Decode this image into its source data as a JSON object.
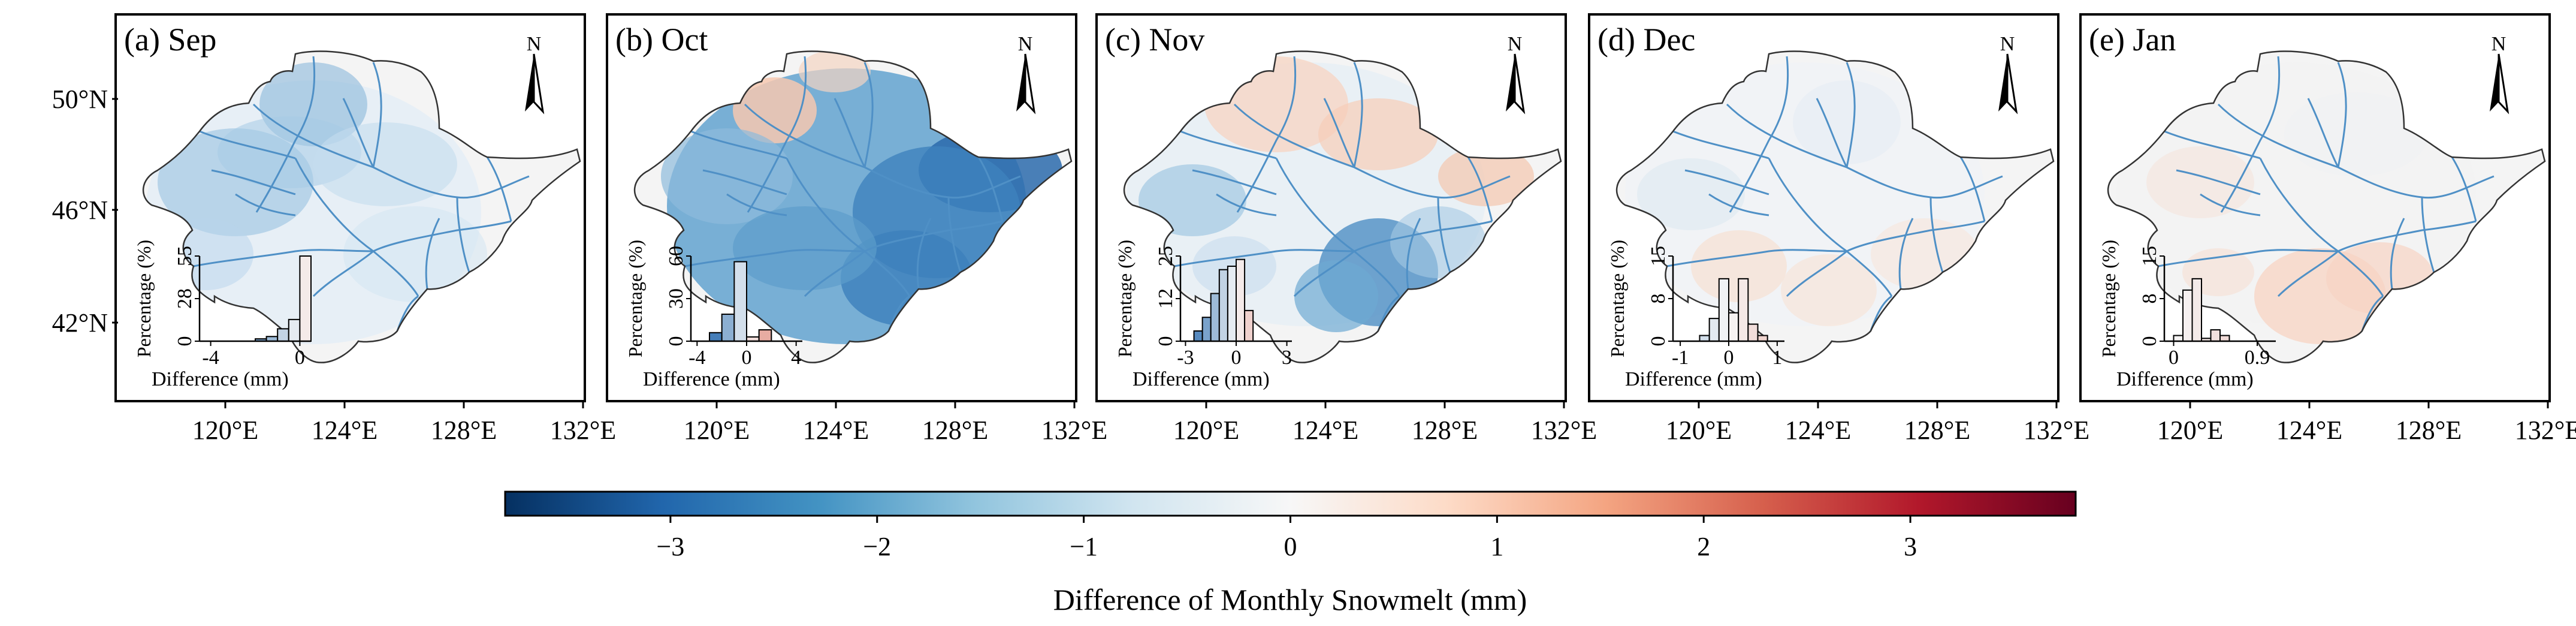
{
  "figure": {
    "panels": [
      {
        "label": "(a) Sep",
        "month": "Sep",
        "tone": "blue-moderate",
        "hist": {
          "yticks": [
            "0",
            "28",
            "55"
          ],
          "xticks": [
            "-4",
            "0"
          ],
          "xrange": [
            -4.5,
            0.5
          ],
          "ymax": 55,
          "bins": [
            {
              "x0": -2.0,
              "x1": -1.5,
              "v": 1.5
            },
            {
              "x0": -1.5,
              "x1": -1.0,
              "v": 3
            },
            {
              "x0": -1.0,
              "x1": -0.5,
              "v": 8
            },
            {
              "x0": -0.5,
              "x1": 0.0,
              "v": 14
            },
            {
              "x0": 0.0,
              "x1": 0.5,
              "v": 55
            }
          ]
        }
      },
      {
        "label": "(b) Oct",
        "month": "Oct",
        "tone": "blue-strong",
        "hist": {
          "yticks": [
            "0",
            "30",
            "60"
          ],
          "xticks": [
            "-4",
            "0",
            "4"
          ],
          "xrange": [
            -4.5,
            4.5
          ],
          "ymax": 60,
          "bins": [
            {
              "x0": -3.0,
              "x1": -2.0,
              "v": 6
            },
            {
              "x0": -2.0,
              "x1": -1.0,
              "v": 19
            },
            {
              "x0": -1.0,
              "x1": 0.0,
              "v": 56
            },
            {
              "x0": 0.0,
              "x1": 1.0,
              "v": 3
            },
            {
              "x0": 1.0,
              "x1": 2.0,
              "v": 8
            }
          ]
        }
      },
      {
        "label": "(c) Nov",
        "month": "Nov",
        "tone": "mixed",
        "hist": {
          "yticks": [
            "0",
            "12",
            "25"
          ],
          "xticks": [
            "-3",
            "0",
            "3"
          ],
          "xrange": [
            -3.3,
            3.3
          ],
          "ymax": 25,
          "bins": [
            {
              "x0": -2.5,
              "x1": -2.0,
              "v": 3
            },
            {
              "x0": -2.0,
              "x1": -1.5,
              "v": 7
            },
            {
              "x0": -1.5,
              "x1": -1.0,
              "v": 14
            },
            {
              "x0": -1.0,
              "x1": -0.5,
              "v": 21
            },
            {
              "x0": -0.5,
              "x1": 0.0,
              "v": 22
            },
            {
              "x0": 0.0,
              "x1": 0.5,
              "v": 24
            },
            {
              "x0": 0.5,
              "x1": 1.0,
              "v": 9
            }
          ]
        }
      },
      {
        "label": "(d) Dec",
        "month": "Dec",
        "tone": "neutral",
        "hist": {
          "yticks": [
            "0",
            "8",
            "15"
          ],
          "xticks": [
            "-1",
            "0",
            "1"
          ],
          "xrange": [
            -1.15,
            1.15
          ],
          "ymax": 15,
          "bins": [
            {
              "x0": -0.6,
              "x1": -0.4,
              "v": 1
            },
            {
              "x0": -0.4,
              "x1": -0.2,
              "v": 4
            },
            {
              "x0": -0.2,
              "x1": 0.0,
              "v": 11
            },
            {
              "x0": 0.0,
              "x1": 0.2,
              "v": 5
            },
            {
              "x0": 0.2,
              "x1": 0.4,
              "v": 11
            },
            {
              "x0": 0.4,
              "x1": 0.6,
              "v": 3
            },
            {
              "x0": 0.6,
              "x1": 0.8,
              "v": 1
            }
          ]
        }
      },
      {
        "label": "(e) Jan",
        "month": "Jan",
        "tone": "neutral-warm",
        "hist": {
          "yticks": [
            "0",
            "8",
            "15"
          ],
          "xticks": [
            "0",
            "0.9"
          ],
          "xrange": [
            -0.1,
            1.1
          ],
          "ymax": 15,
          "bins": [
            {
              "x0": 0.0,
              "x1": 0.1,
              "v": 1
            },
            {
              "x0": 0.1,
              "x1": 0.2,
              "v": 9
            },
            {
              "x0": 0.2,
              "x1": 0.3,
              "v": 11
            },
            {
              "x0": 0.3,
              "x1": 0.4,
              "v": 0.5
            },
            {
              "x0": 0.4,
              "x1": 0.5,
              "v": 2
            },
            {
              "x0": 0.5,
              "x1": 0.6,
              "v": 1
            }
          ]
        }
      }
    ],
    "hist_ylabel": "Percentage (%)",
    "hist_xlabel": "Difference (mm)",
    "north_label": "N",
    "lon_ticks": [
      "120°E",
      "124°E",
      "128°E",
      "132°E"
    ],
    "lat_ticks": [
      "50°N",
      "46°N",
      "42°N"
    ],
    "colorbar": {
      "label": "Difference of Monthly Snowmelt (mm)",
      "ticks": [
        "−3",
        "−2",
        "−1",
        "0",
        "1",
        "2",
        "3"
      ],
      "tick_values": [
        -3,
        -2,
        -1,
        0,
        1,
        2,
        3
      ],
      "range": [
        -3.8,
        3.8
      ],
      "colors": [
        "#053061",
        "#2166ac",
        "#4393c3",
        "#92c5de",
        "#d1e5f0",
        "#f7f7f7",
        "#fddbc7",
        "#f4a582",
        "#d6604d",
        "#b2182b",
        "#67001f"
      ]
    }
  }
}
